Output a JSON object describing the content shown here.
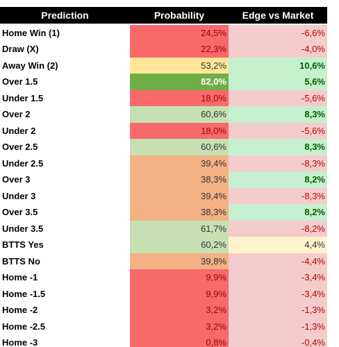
{
  "table": {
    "header": [
      "Prediction",
      "Probability",
      "Edge vs Market"
    ],
    "rows": [
      {
        "label": "Home Win (1)",
        "probability": {
          "text": "24,5%",
          "fill": "#f8696b",
          "color": "#9c0006"
        },
        "edge": {
          "text": "-6,6%",
          "fill": "#f4cccc",
          "color": "#c00000"
        }
      },
      {
        "label": "Draw (X)",
        "probability": {
          "text": "22,3%",
          "fill": "#f8696b",
          "color": "#9c0006"
        },
        "edge": {
          "text": "-4,0%",
          "fill": "#f4cccc",
          "color": "#c00000"
        }
      },
      {
        "label": "Away Win (2)",
        "probability": {
          "text": "53,2%",
          "fill": "#ffe699",
          "color": "#333333"
        },
        "edge": {
          "text": "10,6%",
          "fill": "#c6efce",
          "color": "#006100",
          "bold": true
        }
      },
      {
        "label": "Over 1.5",
        "probability": {
          "text": "82,0%",
          "fill": "#70ad47",
          "color": "#ffffff",
          "bold": true
        },
        "edge": {
          "text": "5,6%",
          "fill": "#c6efce",
          "color": "#006100",
          "bold": true
        }
      },
      {
        "label": "Under 1.5",
        "probability": {
          "text": "18,0%",
          "fill": "#f8696b",
          "color": "#9c0006"
        },
        "edge": {
          "text": "-5,6%",
          "fill": "#f4cccc",
          "color": "#c00000"
        }
      },
      {
        "label": "Over 2",
        "probability": {
          "text": "60,6%",
          "fill": "#c6e0b4",
          "color": "#333333"
        },
        "edge": {
          "text": "8,3%",
          "fill": "#c6efce",
          "color": "#006100",
          "bold": true
        }
      },
      {
        "label": "Under 2",
        "probability": {
          "text": "18,0%",
          "fill": "#f8696b",
          "color": "#9c0006"
        },
        "edge": {
          "text": "-5,6%",
          "fill": "#f4cccc",
          "color": "#c00000"
        }
      },
      {
        "label": "Over 2.5",
        "probability": {
          "text": "60,6%",
          "fill": "#c6e0b4",
          "color": "#333333"
        },
        "edge": {
          "text": "8,3%",
          "fill": "#c6efce",
          "color": "#006100",
          "bold": true
        }
      },
      {
        "label": "Under 2.5",
        "probability": {
          "text": "39,4%",
          "fill": "#f4b183",
          "color": "#333333"
        },
        "edge": {
          "text": "-8,3%",
          "fill": "#f4cccc",
          "color": "#c00000"
        }
      },
      {
        "label": "Over 3",
        "probability": {
          "text": "38,3%",
          "fill": "#f4b183",
          "color": "#333333"
        },
        "edge": {
          "text": "8,2%",
          "fill": "#c6efce",
          "color": "#006100",
          "bold": true
        }
      },
      {
        "label": "Under 3",
        "probability": {
          "text": "39,4%",
          "fill": "#f4b183",
          "color": "#333333"
        },
        "edge": {
          "text": "-8,3%",
          "fill": "#f4cccc",
          "color": "#c00000"
        }
      },
      {
        "label": "Over 3.5",
        "probability": {
          "text": "38,3%",
          "fill": "#f4b183",
          "color": "#333333"
        },
        "edge": {
          "text": "8,2%",
          "fill": "#c6efce",
          "color": "#006100",
          "bold": true
        }
      },
      {
        "label": "Under 3.5",
        "probability": {
          "text": "61,7%",
          "fill": "#c6e0b4",
          "color": "#333333"
        },
        "edge": {
          "text": "-8,2%",
          "fill": "#f4cccc",
          "color": "#c00000"
        }
      },
      {
        "label": "BTTS Yes",
        "probability": {
          "text": "60,2%",
          "fill": "#c6e0b4",
          "color": "#333333"
        },
        "edge": {
          "text": "4,4%",
          "fill": "#fff2cc",
          "color": "#333333"
        }
      },
      {
        "label": "BTTS No",
        "probability": {
          "text": "39,8%",
          "fill": "#f4b183",
          "color": "#333333"
        },
        "edge": {
          "text": "-4,4%",
          "fill": "#f4cccc",
          "color": "#c00000"
        }
      },
      {
        "label": "Home -1",
        "probability": {
          "text": "9,9%",
          "fill": "#f8696b",
          "color": "#9c0006"
        },
        "edge": {
          "text": "-3,4%",
          "fill": "#f4cccc",
          "color": "#c00000"
        }
      },
      {
        "label": "Home -1.5",
        "probability": {
          "text": "9,9%",
          "fill": "#f8696b",
          "color": "#9c0006"
        },
        "edge": {
          "text": "-3,4%",
          "fill": "#f4cccc",
          "color": "#c00000"
        }
      },
      {
        "label": "Home -2",
        "probability": {
          "text": "3,2%",
          "fill": "#f8696b",
          "color": "#9c0006"
        },
        "edge": {
          "text": "-1,3%",
          "fill": "#f4cccc",
          "color": "#c00000"
        }
      },
      {
        "label": "Home -2.5",
        "probability": {
          "text": "3,2%",
          "fill": "#f8696b",
          "color": "#9c0006"
        },
        "edge": {
          "text": "-1,3%",
          "fill": "#f4cccc",
          "color": "#c00000"
        }
      },
      {
        "label": "Home -3",
        "probability": {
          "text": "0,8%",
          "fill": "#f8696b",
          "color": "#9c0006"
        },
        "edge": {
          "text": "-0,4%",
          "fill": "#f4cccc",
          "color": "#c00000"
        }
      }
    ]
  }
}
